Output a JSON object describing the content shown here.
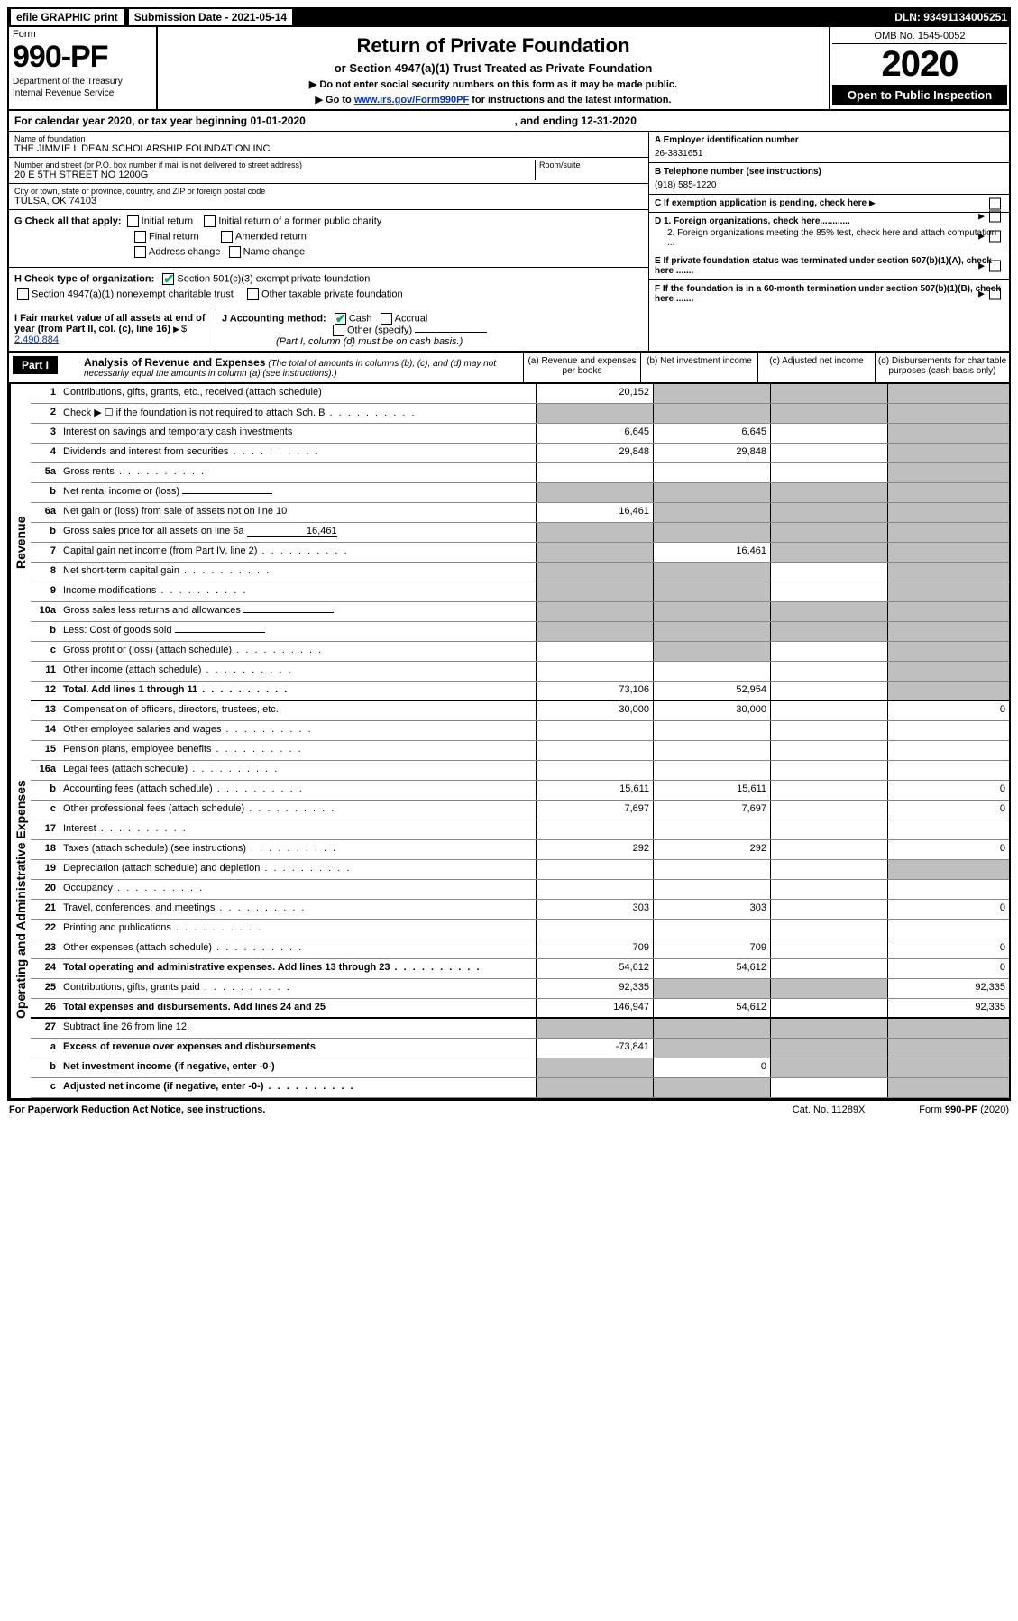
{
  "topBar": {
    "efile": "efile GRAPHIC print",
    "subDateLabel": "Submission Date - 2021-05-14",
    "dln": "DLN: 93491134005251"
  },
  "header": {
    "formWord": "Form",
    "formNum": "990-PF",
    "dept": "Department of the Treasury",
    "irs": "Internal Revenue Service",
    "title": "Return of Private Foundation",
    "subTitle": "or Section 4947(a)(1) Trust Treated as Private Foundation",
    "instr1": "▶ Do not enter social security numbers on this form as it may be made public.",
    "instr2a": "▶ Go to ",
    "instr2link": "www.irs.gov/Form990PF",
    "instr2b": " for instructions and the latest information.",
    "omb": "OMB No. 1545-0052",
    "year": "2020",
    "openPub": "Open to Public Inspection"
  },
  "calYear": {
    "text1": "For calendar year 2020, or tax year beginning 01-01-2020",
    "text2": ", and ending 12-31-2020"
  },
  "foundation": {
    "nameLabel": "Name of foundation",
    "name": "THE JIMMIE L DEAN SCHOLARSHIP FOUNDATION INC",
    "addrLabel": "Number and street (or P.O. box number if mail is not delivered to street address)",
    "addr": "20 E 5TH STREET NO 1200G",
    "roomLabel": "Room/suite",
    "cityLabel": "City or town, state or province, country, and ZIP or foreign postal code",
    "city": "TULSA, OK  74103"
  },
  "rightInfo": {
    "aLabel": "A Employer identification number",
    "a": "26-3831651",
    "bLabel": "B Telephone number (see instructions)",
    "b": "(918) 585-1220",
    "cLabel": "C If exemption application is pending, check here",
    "d1": "D 1. Foreign organizations, check here............",
    "d2": "2. Foreign organizations meeting the 85% test, check here and attach computation ...",
    "e": "E  If private foundation status was terminated under section 507(b)(1)(A), check here .......",
    "f": "F  If the foundation is in a 60-month termination under section 507(b)(1)(B), check here ......."
  },
  "g": {
    "label": "G Check all that apply:",
    "opts": [
      "Initial return",
      "Initial return of a former public charity",
      "Final return",
      "Amended return",
      "Address change",
      "Name change"
    ]
  },
  "h": {
    "label": "H Check type of organization:",
    "opt1": "Section 501(c)(3) exempt private foundation",
    "opt2": "Section 4947(a)(1) nonexempt charitable trust",
    "opt3": "Other taxable private foundation"
  },
  "i": {
    "label": "I Fair market value of all assets at end of year (from Part II, col. (c), line 16)",
    "val": "2,490,884"
  },
  "j": {
    "label": "J Accounting method:",
    "cash": "Cash",
    "accrual": "Accrual",
    "other": "Other (specify)",
    "note": "(Part I, column (d) must be on cash basis.)"
  },
  "part1": {
    "label": "Part I",
    "title": "Analysis of Revenue and Expenses",
    "titleNote": " (The total of amounts in columns (b), (c), and (d) may not necessarily equal the amounts in column (a) (see instructions).)",
    "colA": "(a) Revenue and expenses per books",
    "colB": "(b) Net investment income",
    "colC": "(c) Adjusted net income",
    "colD": "(d) Disbursements for charitable purposes (cash basis only)"
  },
  "sideLabels": {
    "rev": "Revenue",
    "exp": "Operating and Administrative Expenses"
  },
  "lines": [
    {
      "n": "1",
      "d": "Contributions, gifts, grants, etc., received (attach schedule)",
      "a": "20,152",
      "b": "shaded",
      "c": "shaded",
      "dd": "shaded"
    },
    {
      "n": "2",
      "d": "Check ▶ ☐ if the foundation is not required to attach Sch. B",
      "dots": true,
      "a": "shaded",
      "b": "shaded",
      "c": "shaded",
      "dd": "shaded"
    },
    {
      "n": "3",
      "d": "Interest on savings and temporary cash investments",
      "a": "6,645",
      "b": "6,645",
      "c": "",
      "dd": "shaded"
    },
    {
      "n": "4",
      "d": "Dividends and interest from securities",
      "dots": true,
      "a": "29,848",
      "b": "29,848",
      "c": "",
      "dd": "shaded"
    },
    {
      "n": "5a",
      "d": "Gross rents",
      "dots": true,
      "a": "",
      "b": "",
      "c": "",
      "dd": "shaded"
    },
    {
      "n": "b",
      "d": "Net rental income or (loss)",
      "a": "shaded",
      "b": "shaded",
      "c": "shaded",
      "dd": "shaded",
      "inset": true
    },
    {
      "n": "6a",
      "d": "Net gain or (loss) from sale of assets not on line 10",
      "a": "16,461",
      "b": "shaded",
      "c": "shaded",
      "dd": "shaded"
    },
    {
      "n": "b",
      "d": "Gross sales price for all assets on line 6a",
      "a": "shaded",
      "b": "shaded",
      "c": "shaded",
      "dd": "shaded",
      "inset": true,
      "insetVal": "16,461"
    },
    {
      "n": "7",
      "d": "Capital gain net income (from Part IV, line 2)",
      "dots": true,
      "a": "shaded",
      "b": "16,461",
      "c": "shaded",
      "dd": "shaded"
    },
    {
      "n": "8",
      "d": "Net short-term capital gain",
      "dots": true,
      "a": "shaded",
      "b": "shaded",
      "c": "",
      "dd": "shaded"
    },
    {
      "n": "9",
      "d": "Income modifications",
      "dots": true,
      "a": "shaded",
      "b": "shaded",
      "c": "",
      "dd": "shaded"
    },
    {
      "n": "10a",
      "d": "Gross sales less returns and allowances",
      "a": "shaded",
      "b": "shaded",
      "c": "shaded",
      "dd": "shaded",
      "inset": true
    },
    {
      "n": "b",
      "d": "Less: Cost of goods sold",
      "dots": true,
      "a": "shaded",
      "b": "shaded",
      "c": "shaded",
      "dd": "shaded",
      "inset": true
    },
    {
      "n": "c",
      "d": "Gross profit or (loss) (attach schedule)",
      "dots": true,
      "a": "",
      "b": "shaded",
      "c": "",
      "dd": "shaded"
    },
    {
      "n": "11",
      "d": "Other income (attach schedule)",
      "dots": true,
      "a": "",
      "b": "",
      "c": "",
      "dd": "shaded"
    },
    {
      "n": "12",
      "d": "Total. Add lines 1 through 11",
      "dots": true,
      "bold": true,
      "a": "73,106",
      "b": "52,954",
      "c": "",
      "dd": "shaded",
      "thick": true
    }
  ],
  "expLines": [
    {
      "n": "13",
      "d": "Compensation of officers, directors, trustees, etc.",
      "a": "30,000",
      "b": "30,000",
      "c": "",
      "dd": "0"
    },
    {
      "n": "14",
      "d": "Other employee salaries and wages",
      "dots": true,
      "a": "",
      "b": "",
      "c": "",
      "dd": ""
    },
    {
      "n": "15",
      "d": "Pension plans, employee benefits",
      "dots": true,
      "a": "",
      "b": "",
      "c": "",
      "dd": ""
    },
    {
      "n": "16a",
      "d": "Legal fees (attach schedule)",
      "dots": true,
      "a": "",
      "b": "",
      "c": "",
      "dd": ""
    },
    {
      "n": "b",
      "d": "Accounting fees (attach schedule)",
      "dots": true,
      "a": "15,611",
      "b": "15,611",
      "c": "",
      "dd": "0"
    },
    {
      "n": "c",
      "d": "Other professional fees (attach schedule)",
      "dots": true,
      "a": "7,697",
      "b": "7,697",
      "c": "",
      "dd": "0"
    },
    {
      "n": "17",
      "d": "Interest",
      "dots": true,
      "a": "",
      "b": "",
      "c": "",
      "dd": ""
    },
    {
      "n": "18",
      "d": "Taxes (attach schedule) (see instructions)",
      "dots": true,
      "a": "292",
      "b": "292",
      "c": "",
      "dd": "0"
    },
    {
      "n": "19",
      "d": "Depreciation (attach schedule) and depletion",
      "dots": true,
      "a": "",
      "b": "",
      "c": "",
      "dd": "shaded"
    },
    {
      "n": "20",
      "d": "Occupancy",
      "dots": true,
      "a": "",
      "b": "",
      "c": "",
      "dd": ""
    },
    {
      "n": "21",
      "d": "Travel, conferences, and meetings",
      "dots": true,
      "a": "303",
      "b": "303",
      "c": "",
      "dd": "0"
    },
    {
      "n": "22",
      "d": "Printing and publications",
      "dots": true,
      "a": "",
      "b": "",
      "c": "",
      "dd": ""
    },
    {
      "n": "23",
      "d": "Other expenses (attach schedule)",
      "dots": true,
      "a": "709",
      "b": "709",
      "c": "",
      "dd": "0"
    },
    {
      "n": "24",
      "d": "Total operating and administrative expenses. Add lines 13 through 23",
      "dots": true,
      "bold": true,
      "a": "54,612",
      "b": "54,612",
      "c": "",
      "dd": "0"
    },
    {
      "n": "25",
      "d": "Contributions, gifts, grants paid",
      "dots": true,
      "a": "92,335",
      "b": "shaded",
      "c": "shaded",
      "dd": "92,335"
    },
    {
      "n": "26",
      "d": "Total expenses and disbursements. Add lines 24 and 25",
      "bold": true,
      "a": "146,947",
      "b": "54,612",
      "c": "",
      "dd": "92,335",
      "thick": true
    },
    {
      "n": "27",
      "d": "Subtract line 26 from line 12:",
      "a": "shaded",
      "b": "shaded",
      "c": "shaded",
      "dd": "shaded"
    },
    {
      "n": "a",
      "d": "Excess of revenue over expenses and disbursements",
      "bold": true,
      "a": "-73,841",
      "b": "shaded",
      "c": "shaded",
      "dd": "shaded"
    },
    {
      "n": "b",
      "d": "Net investment income (if negative, enter -0-)",
      "bold": true,
      "a": "shaded",
      "b": "0",
      "c": "shaded",
      "dd": "shaded"
    },
    {
      "n": "c",
      "d": "Adjusted net income (if negative, enter -0-)",
      "dots": true,
      "bold": true,
      "a": "shaded",
      "b": "shaded",
      "c": "",
      "dd": "shaded"
    }
  ],
  "footer": {
    "left": "For Paperwork Reduction Act Notice, see instructions.",
    "mid": "Cat. No. 11289X",
    "right": "Form 990-PF (2020)"
  }
}
